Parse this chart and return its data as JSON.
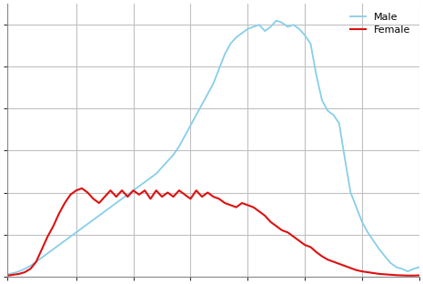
{
  "male_color": "#87CEEB",
  "female_color": "#dd1111",
  "legend_labels": [
    "Male",
    "Female"
  ],
  "background_color": "#ffffff",
  "grid_color": "#c0c0c0",
  "male_data": [
    [
      18,
      0.5
    ],
    [
      19,
      0.8
    ],
    [
      20,
      1.2
    ],
    [
      21,
      1.8
    ],
    [
      22,
      2.5
    ],
    [
      23,
      3.5
    ],
    [
      24,
      4.5
    ],
    [
      25,
      5.5
    ],
    [
      26,
      6.5
    ],
    [
      27,
      7.5
    ],
    [
      28,
      8.5
    ],
    [
      29,
      9.5
    ],
    [
      30,
      10.5
    ],
    [
      31,
      11.5
    ],
    [
      32,
      12.5
    ],
    [
      33,
      13.5
    ],
    [
      34,
      14.5
    ],
    [
      35,
      15.5
    ],
    [
      36,
      16.5
    ],
    [
      37,
      17.5
    ],
    [
      38,
      18.5
    ],
    [
      39,
      19.5
    ],
    [
      40,
      20.5
    ],
    [
      41,
      21.5
    ],
    [
      42,
      22.5
    ],
    [
      43,
      23.5
    ],
    [
      44,
      24.5
    ],
    [
      45,
      26.0
    ],
    [
      46,
      27.5
    ],
    [
      47,
      29.0
    ],
    [
      48,
      31.0
    ],
    [
      49,
      33.5
    ],
    [
      50,
      36.0
    ],
    [
      51,
      38.5
    ],
    [
      52,
      41.0
    ],
    [
      53,
      43.5
    ],
    [
      54,
      46.0
    ],
    [
      55,
      49.5
    ],
    [
      56,
      53.0
    ],
    [
      57,
      55.5
    ],
    [
      58,
      57.0
    ],
    [
      59,
      58.0
    ],
    [
      60,
      59.0
    ],
    [
      61,
      59.5
    ],
    [
      62,
      60.0
    ],
    [
      63,
      58.5
    ],
    [
      64,
      59.5
    ],
    [
      65,
      61.0
    ],
    [
      66,
      60.5
    ],
    [
      67,
      59.5
    ],
    [
      68,
      60.0
    ],
    [
      69,
      59.0
    ],
    [
      70,
      57.5
    ],
    [
      71,
      55.5
    ],
    [
      72,
      48.0
    ],
    [
      73,
      42.0
    ],
    [
      74,
      39.5
    ],
    [
      75,
      38.5
    ],
    [
      76,
      36.5
    ],
    [
      77,
      28.0
    ],
    [
      78,
      20.0
    ],
    [
      79,
      16.5
    ],
    [
      80,
      13.0
    ],
    [
      81,
      10.5
    ],
    [
      82,
      8.5
    ],
    [
      83,
      6.5
    ],
    [
      84,
      4.8
    ],
    [
      85,
      3.2
    ],
    [
      86,
      2.2
    ],
    [
      87,
      1.8
    ],
    [
      88,
      1.2
    ],
    [
      89,
      1.8
    ],
    [
      90,
      2.2
    ]
  ],
  "female_data": [
    [
      18,
      0.2
    ],
    [
      19,
      0.4
    ],
    [
      20,
      0.6
    ],
    [
      21,
      1.0
    ],
    [
      22,
      1.8
    ],
    [
      23,
      3.5
    ],
    [
      24,
      6.5
    ],
    [
      25,
      9.5
    ],
    [
      26,
      12.0
    ],
    [
      27,
      15.0
    ],
    [
      28,
      17.5
    ],
    [
      29,
      19.5
    ],
    [
      30,
      20.5
    ],
    [
      31,
      21.0
    ],
    [
      32,
      20.0
    ],
    [
      33,
      18.5
    ],
    [
      34,
      17.5
    ],
    [
      35,
      19.0
    ],
    [
      36,
      20.5
    ],
    [
      37,
      19.0
    ],
    [
      38,
      20.5
    ],
    [
      39,
      19.0
    ],
    [
      40,
      20.5
    ],
    [
      41,
      19.5
    ],
    [
      42,
      20.5
    ],
    [
      43,
      18.5
    ],
    [
      44,
      20.5
    ],
    [
      45,
      19.0
    ],
    [
      46,
      20.0
    ],
    [
      47,
      19.0
    ],
    [
      48,
      20.5
    ],
    [
      49,
      19.5
    ],
    [
      50,
      18.5
    ],
    [
      51,
      20.5
    ],
    [
      52,
      19.0
    ],
    [
      53,
      20.0
    ],
    [
      54,
      19.0
    ],
    [
      55,
      18.5
    ],
    [
      56,
      17.5
    ],
    [
      57,
      17.0
    ],
    [
      58,
      16.5
    ],
    [
      59,
      17.5
    ],
    [
      60,
      17.0
    ],
    [
      61,
      16.5
    ],
    [
      62,
      15.5
    ],
    [
      63,
      14.5
    ],
    [
      64,
      13.0
    ],
    [
      65,
      12.0
    ],
    [
      66,
      11.0
    ],
    [
      67,
      10.5
    ],
    [
      68,
      9.5
    ],
    [
      69,
      8.5
    ],
    [
      70,
      7.5
    ],
    [
      71,
      7.0
    ],
    [
      72,
      5.8
    ],
    [
      73,
      4.8
    ],
    [
      74,
      4.0
    ],
    [
      75,
      3.5
    ],
    [
      76,
      3.0
    ],
    [
      77,
      2.5
    ],
    [
      78,
      2.0
    ],
    [
      79,
      1.5
    ],
    [
      80,
      1.2
    ],
    [
      81,
      1.0
    ],
    [
      82,
      0.8
    ],
    [
      83,
      0.6
    ],
    [
      84,
      0.5
    ],
    [
      85,
      0.4
    ],
    [
      86,
      0.3
    ],
    [
      87,
      0.25
    ],
    [
      88,
      0.2
    ],
    [
      89,
      0.2
    ],
    [
      90,
      0.25
    ]
  ],
  "ylim": [
    0,
    65
  ],
  "xlim": [
    18,
    90
  ],
  "yticks": [
    0,
    10,
    20,
    30,
    40,
    50,
    60
  ],
  "xticks": [
    18,
    30,
    40,
    50,
    60,
    70,
    80,
    90
  ],
  "figsize": [
    4.65,
    3.12
  ],
  "dpi": 100
}
